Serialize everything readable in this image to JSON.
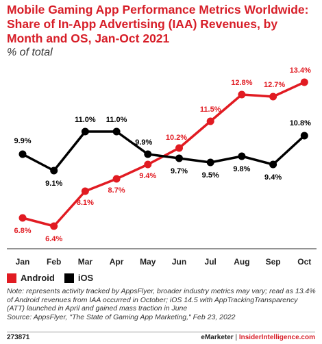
{
  "title": "Mobile Gaming App Performance Metrics Worldwide: Share of In-App Advertising (IAA) Revenues, by Month and OS, Jan-Oct 2021",
  "subtitle": "% of total",
  "colors": {
    "android": "#e11b22",
    "ios": "#000000",
    "title": "#d71e28"
  },
  "chart_data": {
    "type": "line",
    "title": "Mobile Gaming App Performance Metrics Worldwide: Share of In-App Advertising (IAA) Revenues, by Month and OS, Jan-Oct 2021",
    "subtitle": "% of total",
    "categories": [
      "Jan",
      "Feb",
      "Mar",
      "Apr",
      "May",
      "Jun",
      "Jul",
      "Aug",
      "Sep",
      "Oct"
    ],
    "series": [
      {
        "name": "Android",
        "values": [
          6.8,
          6.4,
          8.1,
          8.7,
          9.4,
          10.2,
          11.5,
          12.8,
          12.7,
          13.4
        ],
        "labels": [
          "6.8%",
          "6.4%",
          "8.1%",
          "8.7%",
          "9.4%",
          "10.2%",
          "11.5%",
          "12.8%",
          "12.7%",
          "13.4%"
        ]
      },
      {
        "name": "iOS",
        "values": [
          9.9,
          9.1,
          11.0,
          11.0,
          9.9,
          9.7,
          9.5,
          9.8,
          9.4,
          10.8
        ],
        "labels": [
          "9.9%",
          "9.1%",
          "11.0%",
          "11.0%",
          "9.9%",
          "9.7%",
          "9.5%",
          "9.8%",
          "9.4%",
          "10.8%"
        ]
      }
    ],
    "xlabel": "",
    "ylabel": "",
    "ylim": [
      6,
      14
    ],
    "grid": false,
    "legend": "bottom-left"
  },
  "legend": {
    "android": "Android",
    "ios": "iOS"
  },
  "note": "Note: represents activity tracked by AppsFlyer, broader industry metrics may vary; read as 13.4% of Android revenues from IAA occurred in October; iOS 14.5 with AppTrackingTransparency (ATT) launched in April and gained mass traction in June",
  "source": "Source: AppsFlyer, \"The State of Gaming App Marketing,\" Feb 23, 2022",
  "footer": {
    "id": "273871",
    "brand1": "eMarketer",
    "separator": "|",
    "brand2": "InsiderIntelligence.com"
  }
}
